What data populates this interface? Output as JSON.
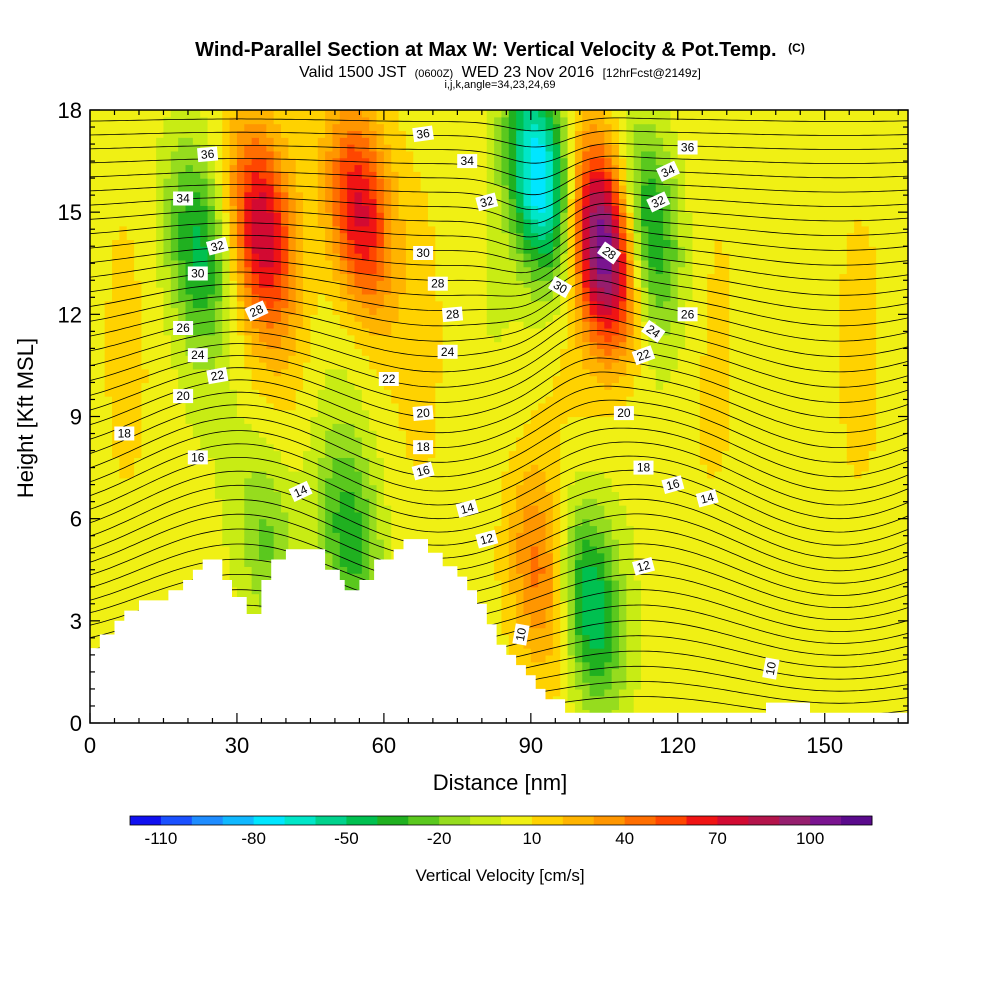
{
  "chart_data": {
    "type": "heatmap",
    "title": "Wind-Parallel Section at Max W: Vertical Velocity & Pot.Temp.",
    "title_tag": "(C)",
    "subtitle": {
      "valid_label": "Valid 1500 JST",
      "utc_label": "(0600Z)",
      "date_label": "WED 23 Nov 2016",
      "forecast_label": "[12hrFcst@2149z]"
    },
    "section_info": "i,j,k,angle=34,23,24,69",
    "xlabel": "Distance [nm]",
    "ylabel": "Height [Kft MSL]",
    "xlim": [
      0,
      167
    ],
    "ylim": [
      0,
      18
    ],
    "x_ticks": [
      "0",
      "30",
      "60",
      "90",
      "120",
      "150"
    ],
    "y_ticks": [
      "0",
      "3",
      "6",
      "9",
      "12",
      "15",
      "18"
    ],
    "colorbar": {
      "label": "Vertical Velocity [cm/s]",
      "tick_labels": [
        "-110",
        "-80",
        "-50",
        "-20",
        "10",
        "40",
        "70",
        "100"
      ],
      "tick_values": [
        -110,
        -80,
        -50,
        -20,
        10,
        40,
        70,
        100
      ],
      "range": [
        -120,
        120
      ],
      "colors": [
        "#1010f0",
        "#1a50ff",
        "#1e8cff",
        "#10b8ff",
        "#00e6ff",
        "#00e6c8",
        "#00d28c",
        "#00c050",
        "#20b020",
        "#5ac81e",
        "#96dc1e",
        "#c8ec14",
        "#f0f014",
        "#ffd200",
        "#ffb400",
        "#ff9600",
        "#ff6e00",
        "#ff4600",
        "#f01414",
        "#d20a32",
        "#b4144b",
        "#961e6e",
        "#7a1490",
        "#5a0a8c"
      ]
    },
    "velocity_features": [
      {
        "kind": "updraft",
        "x": 35,
        "y": 14.5,
        "peak_cms": 70
      },
      {
        "kind": "updraft",
        "x": 55,
        "y": 15,
        "peak_cms": 70
      },
      {
        "kind": "updraft",
        "x": 105,
        "y": 14,
        "peak_cms": 110
      },
      {
        "kind": "updraft",
        "x": 92,
        "y": 4.5,
        "peak_cms": 40
      },
      {
        "kind": "downdraft",
        "x": 22,
        "y": 14,
        "peak_cms": -45
      },
      {
        "kind": "downdraft",
        "x": 92,
        "y": 16,
        "peak_cms": -90
      },
      {
        "kind": "downdraft",
        "x": 102,
        "y": 3.5,
        "peak_cms": -60
      },
      {
        "kind": "downdraft",
        "x": 114,
        "y": 14.5,
        "peak_cms": -50
      },
      {
        "kind": "downdraft",
        "x": 53,
        "y": 5.5,
        "peak_cms": -40
      },
      {
        "kind": "downdraft",
        "x": 36,
        "y": 5.5,
        "peak_cms": -30
      }
    ],
    "theta_contour_labels": [
      {
        "text": "36",
        "x": 24,
        "y": 16.7,
        "angle": -5
      },
      {
        "text": "36",
        "x": 68,
        "y": 17.3,
        "angle": -8
      },
      {
        "text": "36",
        "x": 122,
        "y": 16.9,
        "angle": 0
      },
      {
        "text": "34",
        "x": 19,
        "y": 15.4,
        "angle": 0
      },
      {
        "text": "34",
        "x": 77,
        "y": 16.5,
        "angle": 0
      },
      {
        "text": "34",
        "x": 118,
        "y": 16.2,
        "angle": -25
      },
      {
        "text": "32",
        "x": 26,
        "y": 14,
        "angle": -15
      },
      {
        "text": "32",
        "x": 81,
        "y": 15.3,
        "angle": -15
      },
      {
        "text": "32",
        "x": 116,
        "y": 15.3,
        "angle": -25
      },
      {
        "text": "30",
        "x": 22,
        "y": 13.2,
        "angle": 0
      },
      {
        "text": "30",
        "x": 68,
        "y": 13.8,
        "angle": 0
      },
      {
        "text": "30",
        "x": 96,
        "y": 12.8,
        "angle": 30
      },
      {
        "text": "28",
        "x": 34,
        "y": 12.1,
        "angle": -25
      },
      {
        "text": "28",
        "x": 71,
        "y": 12.9,
        "angle": 0
      },
      {
        "text": "28",
        "x": 74,
        "y": 12,
        "angle": -5
      },
      {
        "text": "28",
        "x": 106,
        "y": 13.8,
        "angle": 35
      },
      {
        "text": "26",
        "x": 19,
        "y": 11.6,
        "angle": 0
      },
      {
        "text": "26",
        "x": 122,
        "y": 12,
        "angle": 0
      },
      {
        "text": "24",
        "x": 22,
        "y": 10.8,
        "angle": 0
      },
      {
        "text": "24",
        "x": 73,
        "y": 10.9,
        "angle": 0
      },
      {
        "text": "24",
        "x": 115,
        "y": 11.5,
        "angle": 35
      },
      {
        "text": "22",
        "x": 26,
        "y": 10.2,
        "angle": -10
      },
      {
        "text": "22",
        "x": 61,
        "y": 10.1,
        "angle": 0
      },
      {
        "text": "22",
        "x": 113,
        "y": 10.8,
        "angle": -20
      },
      {
        "text": "20",
        "x": 19,
        "y": 9.6,
        "angle": 0
      },
      {
        "text": "20",
        "x": 68,
        "y": 9.1,
        "angle": -5
      },
      {
        "text": "20",
        "x": 109,
        "y": 9.1,
        "angle": 0
      },
      {
        "text": "18",
        "x": 7,
        "y": 8.5,
        "angle": 0
      },
      {
        "text": "18",
        "x": 68,
        "y": 8.1,
        "angle": 0
      },
      {
        "text": "18",
        "x": 113,
        "y": 7.5,
        "angle": 0
      },
      {
        "text": "16",
        "x": 22,
        "y": 7.8,
        "angle": 0
      },
      {
        "text": "16",
        "x": 68,
        "y": 7.4,
        "angle": -15
      },
      {
        "text": "16",
        "x": 119,
        "y": 7,
        "angle": -15
      },
      {
        "text": "14",
        "x": 43,
        "y": 6.8,
        "angle": -25
      },
      {
        "text": "14",
        "x": 77,
        "y": 6.3,
        "angle": -15
      },
      {
        "text": "14",
        "x": 126,
        "y": 6.6,
        "angle": -15
      },
      {
        "text": "12",
        "x": 81,
        "y": 5.4,
        "angle": -15
      },
      {
        "text": "12",
        "x": 113,
        "y": 4.6,
        "angle": -15
      },
      {
        "text": "10",
        "x": 88,
        "y": 2.6,
        "angle": -80
      },
      {
        "text": "10",
        "x": 139,
        "y": 1.6,
        "angle": -80
      }
    ],
    "terrain_profile": {
      "x": [
        0,
        2,
        2,
        5,
        5,
        7,
        7,
        10,
        10,
        16,
        16,
        19,
        19,
        21,
        21,
        23,
        23,
        27,
        27,
        29,
        29,
        32,
        32,
        35,
        35,
        37,
        37,
        40,
        40,
        48,
        48,
        51,
        51,
        52,
        52,
        55,
        55,
        58,
        58,
        62,
        62,
        64,
        64,
        69,
        69,
        72,
        72,
        75,
        75,
        77,
        77,
        79,
        79,
        81,
        81,
        83,
        83,
        85,
        85,
        87,
        87,
        89,
        89,
        91,
        91,
        93,
        93,
        97,
        97,
        103,
        103,
        138,
        138,
        147,
        147,
        167
      ],
      "y": [
        2.2,
        2.2,
        2.6,
        2.6,
        3.0,
        3.0,
        3.3,
        3.3,
        3.6,
        3.6,
        3.9,
        3.9,
        4.2,
        4.2,
        4.5,
        4.5,
        4.8,
        4.8,
        4.2,
        4.2,
        3.7,
        3.7,
        3.2,
        3.2,
        4.2,
        4.2,
        4.8,
        4.8,
        5.1,
        5.1,
        4.5,
        4.5,
        4.2,
        4.2,
        3.9,
        3.9,
        4.2,
        4.2,
        4.8,
        4.8,
        5.1,
        5.1,
        5.4,
        5.4,
        5.0,
        5.0,
        4.6,
        4.6,
        4.3,
        4.3,
        3.9,
        3.9,
        3.5,
        3.5,
        2.9,
        2.9,
        2.3,
        2.3,
        2.0,
        2.0,
        1.7,
        1.7,
        1.4,
        1.4,
        1.0,
        1.0,
        0.7,
        0.7,
        0.3,
        0.3,
        0.3,
        0.3,
        0.6,
        0.6,
        0.3,
        0.3
      ]
    }
  }
}
